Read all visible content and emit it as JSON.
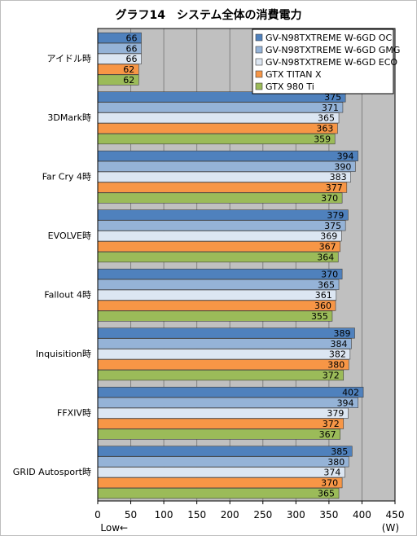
{
  "chart_data": {
    "type": "bar",
    "orientation": "horizontal",
    "title": "グラフ14　システム全体の消費電力",
    "categories": [
      "アイドル時",
      "3DMark時",
      "Far Cry 4時",
      "EVOLVE時",
      "Fallout 4時",
      "Inquisition時",
      "FFXIV時",
      "GRID Autosport時"
    ],
    "series": [
      {
        "name": "GV-N98TXTREME W-6GD OC",
        "color": "#4f81bd",
        "values": [
          66,
          375,
          394,
          379,
          370,
          389,
          402,
          385
        ]
      },
      {
        "name": "GV-N98TXTREME W-6GD GMG",
        "color": "#95b3d7",
        "values": [
          66,
          371,
          390,
          375,
          365,
          384,
          394,
          380
        ]
      },
      {
        "name": "GV-N98TXTREME W-6GD ECO",
        "color": "#dce6f2",
        "values": [
          66,
          365,
          383,
          369,
          361,
          382,
          379,
          374
        ]
      },
      {
        "name": "GTX TITAN X",
        "color": "#f79646",
        "values": [
          62,
          363,
          377,
          367,
          360,
          380,
          372,
          370
        ]
      },
      {
        "name": "GTX 980 Ti",
        "color": "#9bbb59",
        "values": [
          62,
          359,
          370,
          364,
          355,
          372,
          367,
          365
        ]
      }
    ],
    "xlim": [
      0,
      450
    ],
    "xticks": [
      0,
      50,
      100,
      150,
      200,
      250,
      300,
      350,
      400,
      450
    ],
    "xlabel_left": "Low←",
    "xlabel_right": "(W)",
    "grid": true,
    "legend": "top-right",
    "plot_background": "#c0c0c0"
  }
}
